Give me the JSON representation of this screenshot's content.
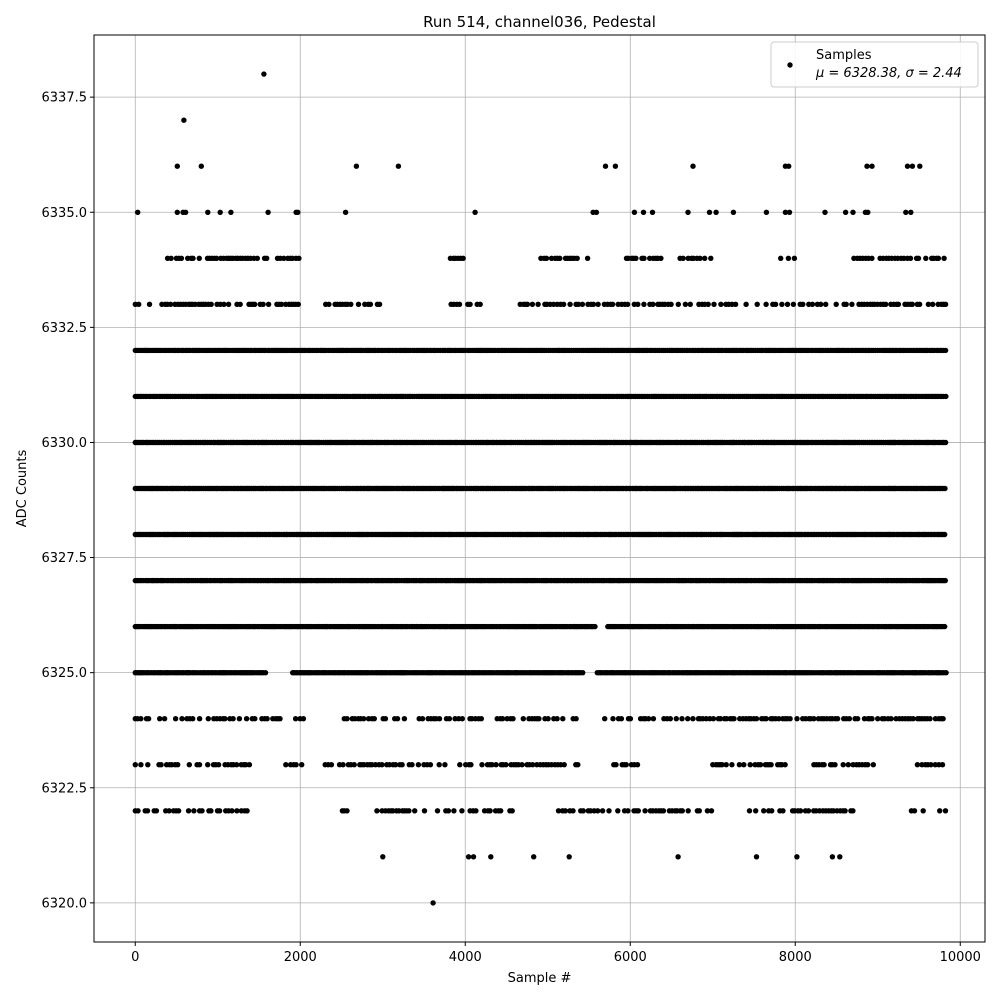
{
  "chart_data": {
    "type": "scatter",
    "title": "Run 514, channel036, Pedestal",
    "xlabel": "Sample #",
    "ylabel": "ADC Counts",
    "xlim": [
      -500,
      10300
    ],
    "ylim": [
      6319.15,
      6338.85
    ],
    "x_ticks": [
      0,
      2000,
      4000,
      6000,
      8000,
      10000
    ],
    "x_tick_labels": [
      "0",
      "2000",
      "4000",
      "6000",
      "8000",
      "10000"
    ],
    "y_ticks": [
      6320.0,
      6322.5,
      6325.0,
      6327.5,
      6330.0,
      6332.5,
      6335.0,
      6337.5
    ],
    "y_tick_labels": [
      "6320.0",
      "6322.5",
      "6325.0",
      "6327.5",
      "6330.0",
      "6332.5",
      "6335.0",
      "6337.5"
    ],
    "grid": true,
    "legend": {
      "placement": "top-right",
      "line1": "Samples",
      "line2": "μ = 6328.38, σ = 2.44"
    },
    "marker_color": "#000000",
    "series": [
      {
        "name": "Samples",
        "n_samples": 9830,
        "mean": 6328.38,
        "sigma": 2.44,
        "sparse_points": [
          [
            1560,
            6338
          ],
          [
            590,
            6337
          ],
          [
            510,
            6336
          ],
          [
            800,
            6336
          ],
          [
            2680,
            6336
          ],
          [
            3190,
            6336
          ],
          [
            5700,
            6336
          ],
          [
            5820,
            6336
          ],
          [
            6760,
            6336
          ],
          [
            7880,
            6336
          ],
          [
            7920,
            6336
          ],
          [
            8870,
            6336
          ],
          [
            8930,
            6336
          ],
          [
            9360,
            6336
          ],
          [
            9420,
            6336
          ],
          [
            9510,
            6336
          ],
          [
            30,
            6335
          ],
          [
            510,
            6335
          ],
          [
            580,
            6335
          ],
          [
            610,
            6335
          ],
          [
            880,
            6335
          ],
          [
            1030,
            6335
          ],
          [
            1160,
            6335
          ],
          [
            1610,
            6335
          ],
          [
            1950,
            6335
          ],
          [
            1970,
            6335
          ],
          [
            2550,
            6335
          ],
          [
            4120,
            6335
          ],
          [
            5550,
            6335
          ],
          [
            5590,
            6335
          ],
          [
            6050,
            6335
          ],
          [
            6160,
            6335
          ],
          [
            6270,
            6335
          ],
          [
            6700,
            6335
          ],
          [
            6960,
            6335
          ],
          [
            7040,
            6335
          ],
          [
            7250,
            6335
          ],
          [
            7650,
            6335
          ],
          [
            7880,
            6335
          ],
          [
            7930,
            6335
          ],
          [
            8360,
            6335
          ],
          [
            8610,
            6335
          ],
          [
            8700,
            6335
          ],
          [
            8850,
            6335
          ],
          [
            8880,
            6335
          ],
          [
            9340,
            6335
          ],
          [
            9400,
            6335
          ],
          [
            3000,
            6321
          ],
          [
            4040,
            6321
          ],
          [
            4100,
            6321
          ],
          [
            4310,
            6321
          ],
          [
            4830,
            6321
          ],
          [
            5260,
            6321
          ],
          [
            6580,
            6321
          ],
          [
            7530,
            6321
          ],
          [
            8020,
            6321
          ],
          [
            8450,
            6321
          ],
          [
            8540,
            6321
          ],
          [
            3610,
            6320
          ]
        ],
        "level_coverage": [
          {
            "level": 6334,
            "gaps": [
              [
                0,
                350
              ],
              [
                2000,
                3800
              ],
              [
                4000,
                4900
              ],
              [
                5600,
                5950
              ],
              [
                6400,
                6600
              ],
              [
                7000,
                7800
              ],
              [
                8000,
                8650
              ]
            ]
          },
          {
            "level": 6333,
            "gaps": [
              [
                60,
                150
              ],
              [
                2000,
                2280
              ],
              [
                3000,
                3800
              ],
              [
                4200,
                4600
              ]
            ]
          },
          {
            "level": 6332,
            "gaps": []
          },
          {
            "level": 6331,
            "gaps": []
          },
          {
            "level": 6330,
            "gaps": []
          },
          {
            "level": 6329,
            "gaps": []
          },
          {
            "level": 6328,
            "gaps": []
          },
          {
            "level": 6327,
            "gaps": []
          },
          {
            "level": 6326,
            "gaps": [
              [
                5580,
                5700
              ]
            ]
          },
          {
            "level": 6325,
            "gaps": [
              [
                1600,
                1900
              ],
              [
                5450,
                5600
              ]
            ]
          },
          {
            "level": 6324,
            "gaps": [
              [
                2050,
                2500
              ],
              [
                5350,
                5650
              ]
            ]
          },
          {
            "level": 6323,
            "gaps": [
              [
                1400,
                1800
              ],
              [
                2100,
                2300
              ],
              [
                5400,
                5800
              ],
              [
                6200,
                7000
              ],
              [
                7900,
                8200
              ],
              [
                9000,
                9400
              ]
            ]
          },
          {
            "level": 6322,
            "gaps": [
              [
                1400,
                2500
              ],
              [
                2600,
                2880
              ],
              [
                4600,
                5050
              ],
              [
                7000,
                7400
              ],
              [
                8700,
                9400
              ]
            ]
          }
        ]
      }
    ]
  }
}
